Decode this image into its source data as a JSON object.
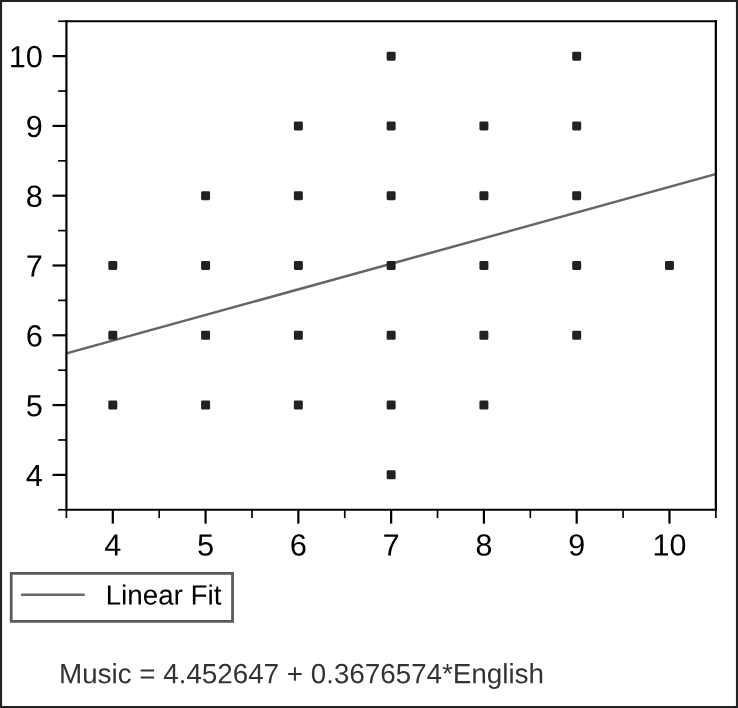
{
  "chart_data": {
    "type": "scatter",
    "xlim": [
      3.5,
      10.5
    ],
    "ylim": [
      3.5,
      10.5
    ],
    "xticks": [
      4,
      5,
      6,
      7,
      8,
      9,
      10
    ],
    "yticks": [
      4,
      5,
      6,
      7,
      8,
      9,
      10
    ],
    "grid": false,
    "legend": "bottom left",
    "series": [
      {
        "marker": "square",
        "color": "#222222",
        "x": [
          4,
          4,
          4,
          5,
          5,
          5,
          5,
          6,
          6,
          6,
          6,
          6,
          7,
          7,
          7,
          7,
          7,
          7,
          7,
          8,
          8,
          8,
          8,
          8,
          9,
          9,
          9,
          9,
          9,
          10
        ],
        "values": [
          7,
          6,
          5,
          8,
          7,
          6,
          5,
          9,
          8,
          7,
          6,
          5,
          10,
          9,
          8,
          7,
          6,
          5,
          4,
          9,
          8,
          7,
          6,
          5,
          10,
          9,
          8,
          7,
          6,
          7
        ]
      },
      {
        "type": "line",
        "name": "Linear Fit",
        "color": "#666666",
        "x": [
          3.5,
          10.5
        ],
        "values": [
          5.74,
          8.31
        ],
        "line_style": "solid"
      }
    ],
    "annotations": [
      "Music = 4.452647 + 0.3676574*English"
    ]
  }
}
